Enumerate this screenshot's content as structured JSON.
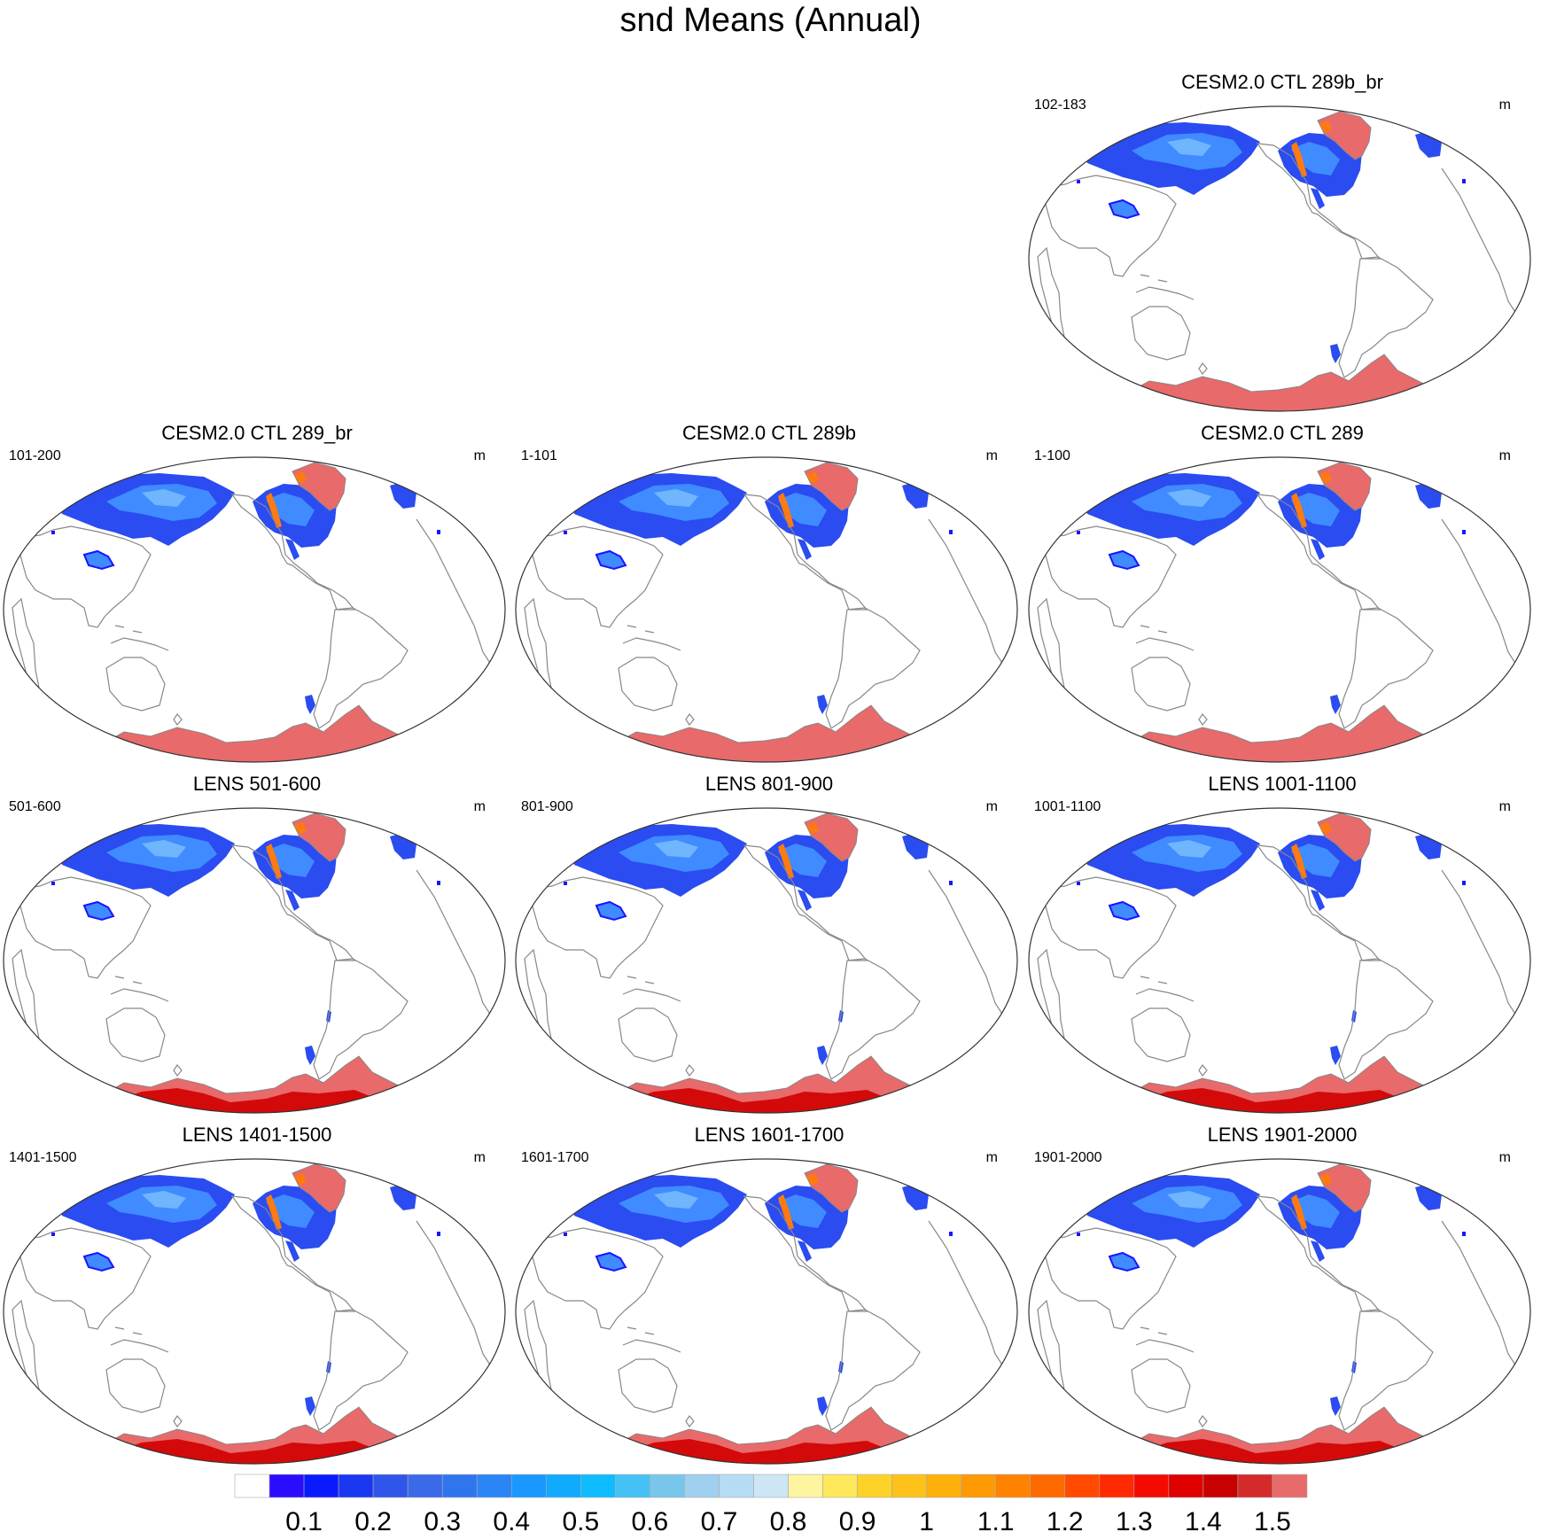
{
  "title": "snd Means (Annual)",
  "units": "m",
  "colors": {
    "land_outline": "#888888",
    "frame": "#333333",
    "antarctica": "#e86a6a",
    "antarctica_deep": "#d40a0a",
    "greenland": "#e86a6a",
    "snow_main": "#2a4cf0",
    "snow_light": "#3f8bff",
    "snow_core": "#6fb6ff",
    "snow_edge": "#1a14ff",
    "snow_orange": "#ff7a10"
  },
  "panels": [
    {
      "id": "ctl-289b-br",
      "title": "CESM2.0 CTL 289b_br",
      "years": "102-183",
      "lens": false
    },
    {
      "id": "ctl-289-br",
      "title": "CESM2.0 CTL 289_br",
      "years": "101-200",
      "lens": false
    },
    {
      "id": "ctl-289b",
      "title": "CESM2.0 CTL 289b",
      "years": "1-101",
      "lens": false
    },
    {
      "id": "ctl-289",
      "title": "CESM2.0 CTL 289",
      "years": "1-100",
      "lens": false
    },
    {
      "id": "lens-501-600",
      "title": "LENS 501-600",
      "years": "501-600",
      "lens": true
    },
    {
      "id": "lens-801-900",
      "title": "LENS 801-900",
      "years": "801-900",
      "lens": true
    },
    {
      "id": "lens-1001-1100",
      "title": "LENS 1001-1100",
      "years": "1001-1100",
      "lens": true
    },
    {
      "id": "lens-1401-1500",
      "title": "LENS 1401-1500",
      "years": "1401-1500",
      "lens": true
    },
    {
      "id": "lens-1601-1700",
      "title": "LENS 1601-1700",
      "years": "1601-1700",
      "lens": true
    },
    {
      "id": "lens-1901-2000",
      "title": "LENS 1901-2000",
      "years": "1901-2000",
      "lens": true
    }
  ],
  "chart_data": {
    "type": "heatmap",
    "variable": "snd",
    "title": "snd Means (Annual)",
    "units": "m",
    "projection": "Robinson (Pacific-centered)",
    "colorbar": {
      "levels": [
        0.05,
        0.1,
        0.15,
        0.2,
        0.25,
        0.3,
        0.35,
        0.4,
        0.45,
        0.5,
        0.55,
        0.6,
        0.65,
        0.7,
        0.75,
        0.8,
        0.85,
        0.9,
        0.95,
        1,
        1.05,
        1.1,
        1.15,
        1.2,
        1.25,
        1.3,
        1.35,
        1.4,
        1.45,
        1.5
      ],
      "tick_labels": [
        "0.1",
        "0.2",
        "0.3",
        "0.4",
        "0.5",
        "0.6",
        "0.7",
        "0.8",
        "0.9",
        "1",
        "1.1",
        "1.2",
        "1.3",
        "1.4",
        "1.5"
      ],
      "colors": [
        "#ffffff",
        "#2a0cff",
        "#0a1aff",
        "#1a38f0",
        "#2f55ea",
        "#3a6ae8",
        "#2f76ee",
        "#2a86f5",
        "#1a98ff",
        "#10aaff",
        "#0fbcff",
        "#45c2f5",
        "#78c6ec",
        "#9fd0ef",
        "#b5dcf3",
        "#cde6f6",
        "#fff5a0",
        "#ffe85a",
        "#ffd22a",
        "#ffc21a",
        "#ffb00a",
        "#ff9a05",
        "#ff8200",
        "#ff6a00",
        "#ff4a00",
        "#ff2a00",
        "#f50a00",
        "#e00000",
        "#c80000",
        "#d42a2a",
        "#e86a6a"
      ]
    }
  }
}
